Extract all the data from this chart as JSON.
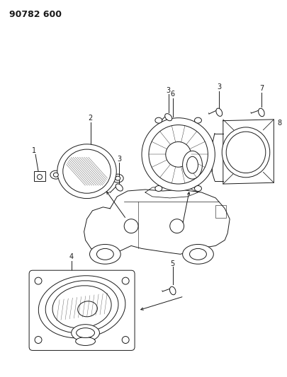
{
  "title": "90782 600",
  "bg_color": "#ffffff",
  "line_color": "#1a1a1a",
  "title_fontsize": 9,
  "fig_width": 4.06,
  "fig_height": 5.33,
  "dpi": 100
}
